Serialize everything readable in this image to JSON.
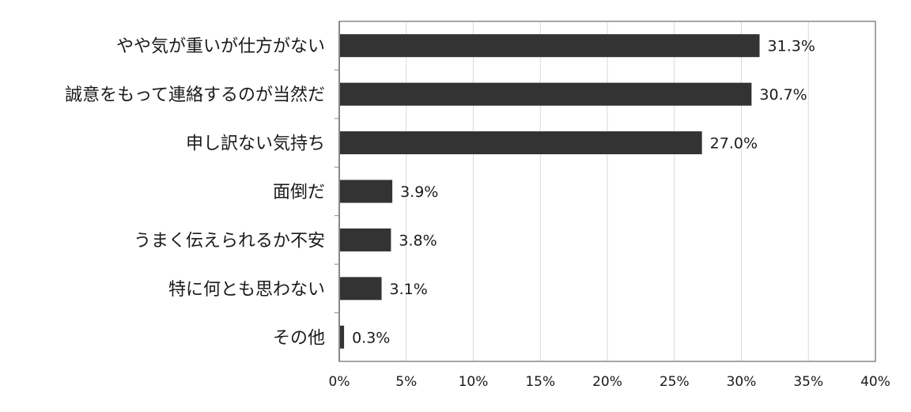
{
  "chart_data": {
    "type": "bar",
    "orientation": "horizontal",
    "title": "",
    "xlabel": "",
    "ylabel": "",
    "categories": [
      "やや気が重いが仕方がない",
      "誠意をもって連絡するのが当然だ",
      "申し訳ない気持ち",
      "面倒だ",
      "うまく伝えられるか不安",
      "特に何とも思わない",
      "その他"
    ],
    "values": [
      31.3,
      30.7,
      27.0,
      3.9,
      3.8,
      3.1,
      0.3
    ],
    "value_labels": [
      "31.3%",
      "30.7%",
      "27.0%",
      "3.9%",
      "3.8%",
      "3.1%",
      "0.3%"
    ],
    "xlim": [
      0,
      40
    ],
    "ticks": [
      0,
      5,
      10,
      15,
      20,
      25,
      30,
      35,
      40
    ],
    "tick_labels": [
      "0%",
      "5%",
      "10%",
      "15%",
      "20%",
      "25%",
      "30%",
      "35%",
      "40%"
    ],
    "grid": true,
    "bar_color": "#333333",
    "grid_color": "#d9d9d9",
    "axis_color": "#888888"
  }
}
